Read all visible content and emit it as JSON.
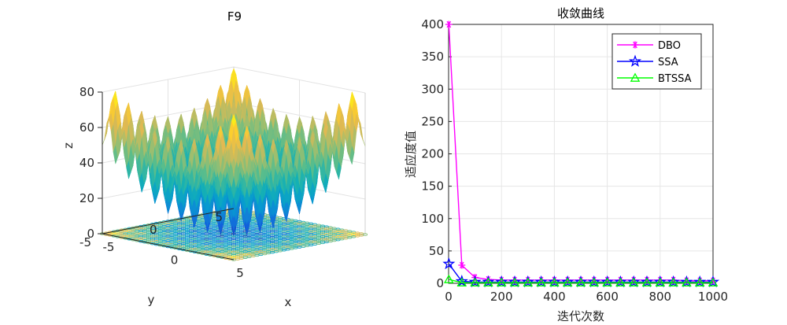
{
  "chart_data": [
    {
      "type": "surface3d",
      "title": "F9",
      "xlabel": "x",
      "ylabel": "y",
      "zlabel": "z",
      "xlim": [
        -5,
        5
      ],
      "ylim": [
        -5,
        5
      ],
      "zlim": [
        0,
        80
      ],
      "xticks": [
        "-5",
        "0",
        "5"
      ],
      "yticks": [
        "-5",
        "0",
        "5"
      ],
      "zticks": [
        "0",
        "20",
        "40",
        "60",
        "80"
      ],
      "function": "Rastrigin: z = sum(x_i^2 - 10*cos(2*pi*x_i) + 10)",
      "colormap": "parula",
      "grid": true
    },
    {
      "type": "line",
      "title": "收敛曲线",
      "xlabel": "迭代次数",
      "ylabel": "适应度值",
      "xlim": [
        0,
        1000
      ],
      "ylim": [
        0,
        400
      ],
      "xticks": [
        "0",
        "200",
        "400",
        "600",
        "800",
        "1000"
      ],
      "yticks": [
        "0",
        "50",
        "100",
        "150",
        "200",
        "250",
        "300",
        "350",
        "400"
      ],
      "grid": true,
      "legend_position": "top-right",
      "x": [
        1,
        50,
        100,
        150,
        200,
        250,
        300,
        350,
        400,
        450,
        500,
        550,
        600,
        650,
        700,
        750,
        800,
        850,
        900,
        950,
        1000
      ],
      "series": [
        {
          "name": "DBO",
          "color": "#ff00ff",
          "marker": "asterisk",
          "values": [
            400,
            28,
            9,
            6,
            5,
            5,
            5,
            5,
            5,
            5,
            5,
            5,
            5,
            5,
            5,
            5,
            5,
            5,
            4,
            4,
            4
          ]
        },
        {
          "name": "SSA",
          "color": "#0000ff",
          "marker": "pentagram",
          "values": [
            30,
            3,
            2,
            2,
            2,
            2,
            2,
            2,
            2,
            2,
            2,
            2,
            2,
            2,
            2,
            2,
            2,
            2,
            2,
            2,
            2
          ]
        },
        {
          "name": "BTSSA",
          "color": "#00ff00",
          "marker": "triangle",
          "values": [
            6,
            1,
            1,
            1,
            1,
            1,
            1,
            1,
            1,
            1,
            1,
            1,
            1,
            1,
            1,
            1,
            1,
            1,
            1,
            1,
            1
          ]
        }
      ]
    }
  ]
}
